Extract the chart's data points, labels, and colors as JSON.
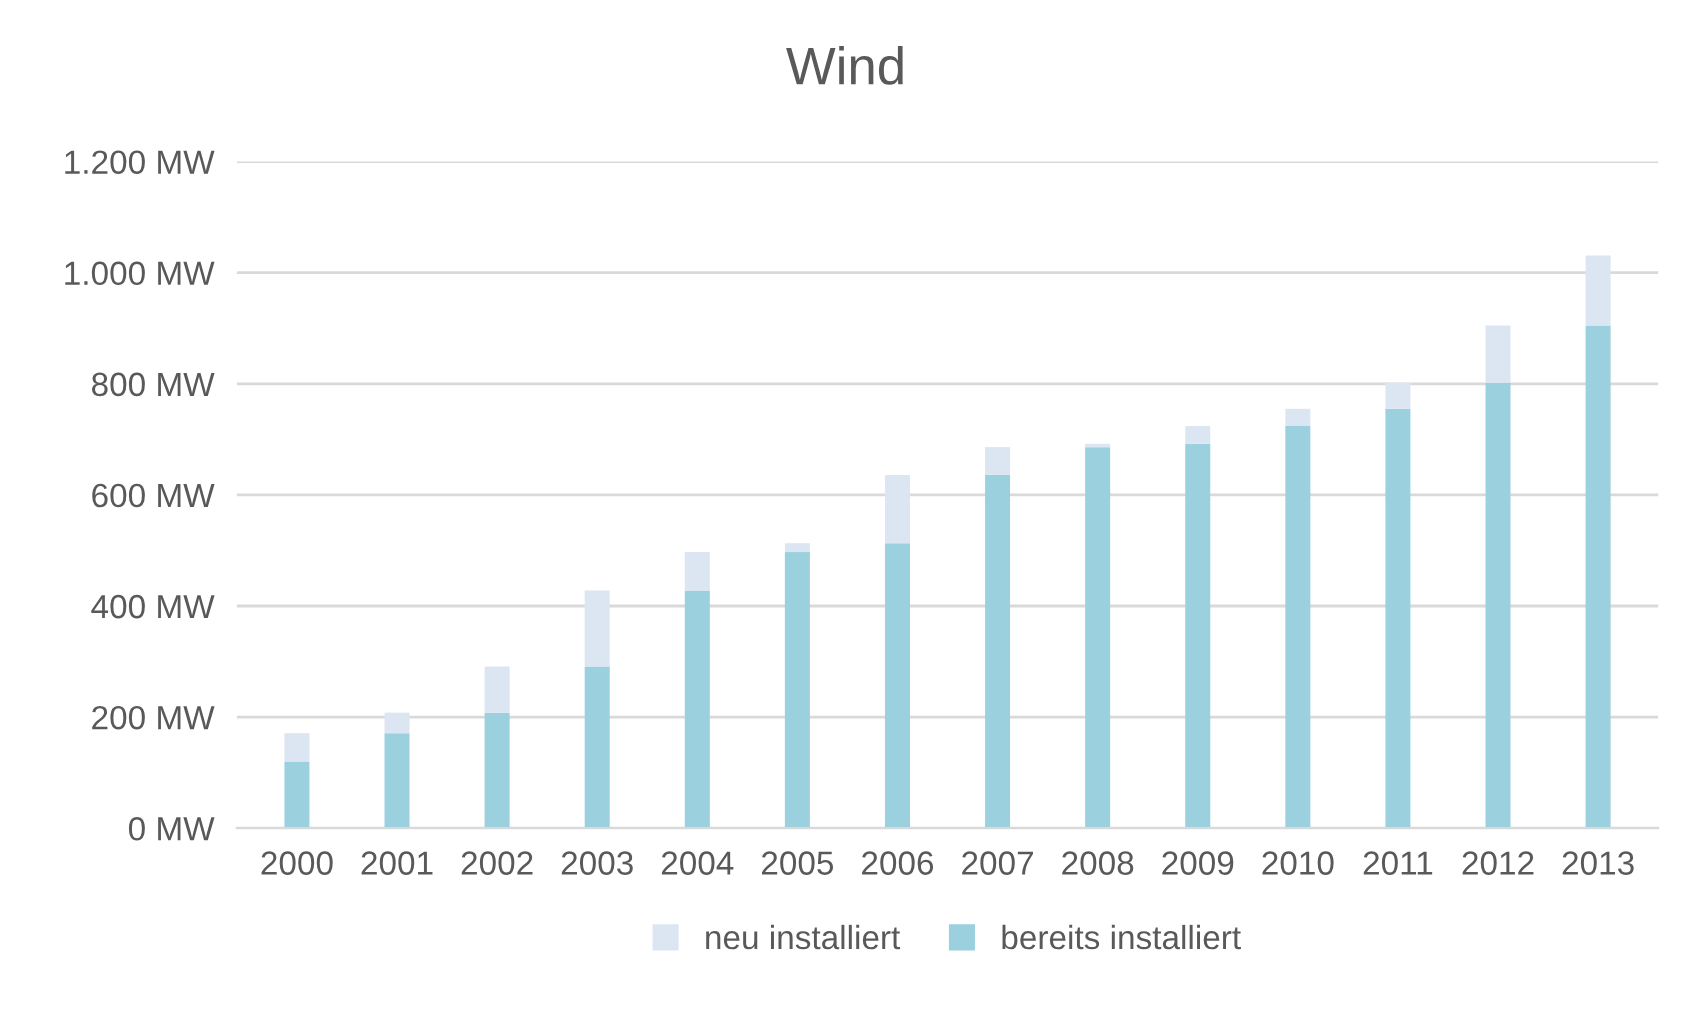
{
  "chart_data": {
    "type": "bar",
    "title": "Wind",
    "stacked": true,
    "categories": [
      "2000",
      "2001",
      "2002",
      "2003",
      "2004",
      "2005",
      "2006",
      "2007",
      "2008",
      "2009",
      "2010",
      "2011",
      "2012",
      "2013"
    ],
    "series": [
      {
        "name": "bereits installiert",
        "color": "#9bd0de",
        "values": [
          120,
          171,
          208,
          291,
          428,
          497,
          513,
          636,
          686,
          692,
          724,
          755,
          802,
          905
        ]
      },
      {
        "name": "neu installiert",
        "color": "#dce6f2",
        "values": [
          51,
          37,
          83,
          137,
          69,
          16,
          123,
          50,
          6,
          32,
          31,
          47,
          103,
          126
        ]
      }
    ],
    "ylim": [
      0,
      1200
    ],
    "yticks": [
      {
        "value": 0,
        "label": "0 MW"
      },
      {
        "value": 200,
        "label": "200 MW"
      },
      {
        "value": 400,
        "label": "400 MW"
      },
      {
        "value": 600,
        "label": "600 MW"
      },
      {
        "value": 800,
        "label": "800 MW"
      },
      {
        "value": 1000,
        "label": "1.000 MW"
      },
      {
        "value": 1200,
        "label": "1.200 MW"
      }
    ],
    "grid": "y",
    "legend": "bottom"
  }
}
